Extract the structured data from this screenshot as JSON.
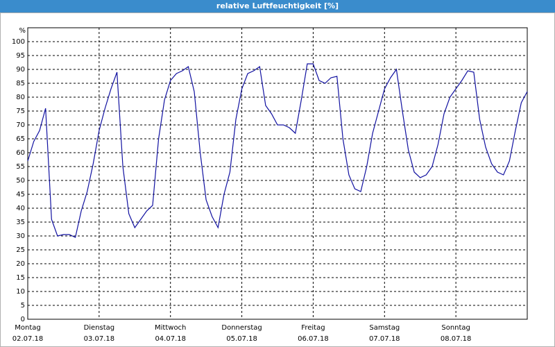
{
  "chart_data": {
    "type": "line",
    "title": "relative Luftfeuchtigkeit [%]",
    "y_unit": "%",
    "color": "#1010a0",
    "grid": true,
    "x": [
      0,
      2,
      4,
      6,
      8,
      10,
      12,
      14,
      16,
      18,
      20,
      22,
      24,
      26,
      28,
      30,
      32,
      34,
      36,
      38,
      40,
      42,
      44,
      46,
      48,
      50,
      52,
      54,
      56,
      58,
      60,
      62,
      64,
      66,
      68,
      70,
      72,
      74,
      76,
      78,
      80,
      82,
      84,
      86,
      88,
      90,
      92,
      94,
      96,
      98,
      100,
      102,
      104,
      106,
      108,
      110,
      112,
      114,
      116,
      118,
      120,
      122,
      124,
      126,
      128,
      130,
      132,
      134,
      136,
      138,
      140,
      142,
      144,
      146,
      148,
      150,
      152,
      154,
      156,
      158,
      160,
      162,
      164,
      166,
      168
    ],
    "values": [
      57,
      64,
      68,
      76,
      36,
      30,
      30.5,
      30.5,
      29.5,
      39,
      46,
      56,
      68,
      76,
      83,
      89,
      55,
      38,
      33,
      36,
      39,
      41,
      65,
      79,
      86,
      88.5,
      89.5,
      91,
      82,
      60,
      43,
      37,
      33,
      45,
      53,
      72,
      83,
      88.5,
      89.5,
      91,
      77,
      74,
      70,
      70,
      69,
      67,
      79,
      92,
      92,
      86,
      85,
      87,
      87.5,
      65,
      52,
      47,
      46,
      55,
      67,
      75,
      83,
      87,
      90,
      75,
      61,
      53,
      51,
      52,
      55,
      63,
      74,
      80,
      83,
      86,
      89.5,
      89,
      72,
      62,
      56,
      53,
      52,
      57,
      68,
      78,
      82
    ],
    "xlim": [
      0,
      168
    ],
    "xticks": [
      {
        "value": 0,
        "label": "Montag\n02.07.18"
      },
      {
        "value": 24,
        "label": "Dienstag\n03.07.18"
      },
      {
        "value": 48,
        "label": "Mittwoch\n04.07.18"
      },
      {
        "value": 72,
        "label": "Donnerstag\n05.07.18"
      },
      {
        "value": 96,
        "label": "Freitag\n06.07.18"
      },
      {
        "value": 120,
        "label": "Samstag\n07.07.18"
      },
      {
        "value": 144,
        "label": "Sonntag\n08.07.18"
      }
    ],
    "ylim": [
      0,
      105
    ],
    "yticks": [
      0,
      5,
      10,
      15,
      20,
      25,
      30,
      35,
      40,
      45,
      50,
      55,
      60,
      65,
      70,
      75,
      80,
      85,
      90,
      95,
      100
    ]
  }
}
